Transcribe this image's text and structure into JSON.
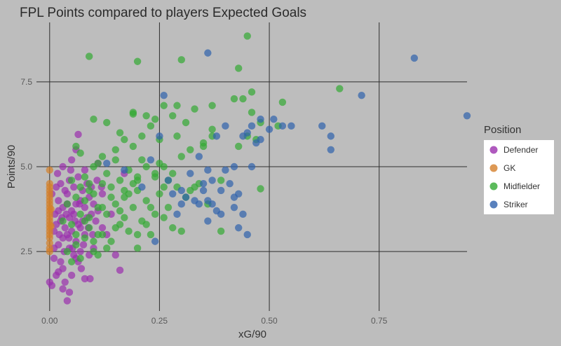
{
  "chart_data": {
    "type": "scatter",
    "title": "FPL Points compared to players Expected Goals",
    "xlabel": "xG/90",
    "ylabel": "Points/90",
    "xlim": [
      -0.03,
      0.95
    ],
    "ylim": [
      0.75,
      9.25
    ],
    "xticks": [
      0.0,
      0.25,
      0.5,
      0.75
    ],
    "xtick_labels": [
      "0.00",
      "0.25",
      "0.50",
      "0.75"
    ],
    "yticks": [
      2.5,
      5.0,
      7.5
    ],
    "ytick_labels": [
      "2.5",
      "5.0",
      "7.5"
    ],
    "grid": true,
    "legend": {
      "title": "Position",
      "placement": "right",
      "entries": [
        {
          "label": "Defender",
          "color": "#9b2fae"
        },
        {
          "label": "GK",
          "color": "#d4802a"
        },
        {
          "label": "Midfielder",
          "color": "#33aa33"
        },
        {
          "label": "Striker",
          "color": "#2f62ad"
        }
      ]
    },
    "series": [
      {
        "name": "Defender",
        "color": "#9b2fae",
        "points": [
          [
            0.0,
            1.6
          ],
          [
            0.005,
            1.5
          ],
          [
            0.01,
            2.3
          ],
          [
            0.015,
            1.8
          ],
          [
            0.02,
            1.9
          ],
          [
            0.025,
            2.2
          ],
          [
            0.03,
            1.4
          ],
          [
            0.035,
            1.6
          ],
          [
            0.04,
            1.05
          ],
          [
            0.045,
            2.6
          ],
          [
            0.05,
            1.8
          ],
          [
            0.055,
            2.4
          ],
          [
            0.06,
            2.3
          ],
          [
            0.065,
            2.2
          ],
          [
            0.07,
            2.5
          ],
          [
            0.08,
            1.7
          ],
          [
            0.09,
            2.4
          ],
          [
            0.1,
            2.6
          ],
          [
            0.02,
            2.7
          ],
          [
            0.03,
            2.9
          ],
          [
            0.04,
            3.0
          ],
          [
            0.05,
            3.1
          ],
          [
            0.06,
            2.8
          ],
          [
            0.07,
            3.2
          ],
          [
            0.08,
            3.0
          ],
          [
            0.01,
            3.1
          ],
          [
            0.015,
            3.3
          ],
          [
            0.025,
            3.4
          ],
          [
            0.035,
            3.2
          ],
          [
            0.045,
            3.5
          ],
          [
            0.055,
            3.6
          ],
          [
            0.065,
            3.3
          ],
          [
            0.075,
            3.4
          ],
          [
            0.085,
            3.5
          ],
          [
            0.095,
            3.6
          ],
          [
            0.105,
            3.4
          ],
          [
            0.02,
            3.7
          ],
          [
            0.03,
            3.8
          ],
          [
            0.04,
            3.9
          ],
          [
            0.05,
            3.7
          ],
          [
            0.06,
            3.9
          ],
          [
            0.07,
            4.0
          ],
          [
            0.08,
            3.8
          ],
          [
            0.09,
            4.1
          ],
          [
            0.1,
            3.9
          ],
          [
            0.11,
            3.7
          ],
          [
            0.005,
            4.2
          ],
          [
            0.015,
            4.4
          ],
          [
            0.025,
            4.5
          ],
          [
            0.035,
            4.3
          ],
          [
            0.045,
            4.6
          ],
          [
            0.055,
            4.4
          ],
          [
            0.065,
            4.7
          ],
          [
            0.075,
            4.3
          ],
          [
            0.085,
            4.5
          ],
          [
            0.095,
            4.4
          ],
          [
            0.12,
            4.2
          ],
          [
            0.03,
            5.0
          ],
          [
            0.05,
            5.2
          ],
          [
            0.06,
            5.5
          ],
          [
            0.08,
            4.9
          ],
          [
            0.11,
            5.1
          ],
          [
            0.12,
            3.2
          ],
          [
            0.13,
            3.0
          ],
          [
            0.15,
            2.4
          ],
          [
            0.16,
            1.95
          ],
          [
            0.065,
            5.95
          ],
          [
            0.02,
            4.0
          ],
          [
            0.04,
            4.2
          ],
          [
            0.03,
            2.0
          ],
          [
            0.045,
            1.3
          ],
          [
            0.01,
            2.6
          ],
          [
            0.012,
            3.6
          ],
          [
            0.022,
            3.0
          ],
          [
            0.033,
            2.5
          ],
          [
            0.044,
            2.9
          ],
          [
            0.058,
            3.4
          ],
          [
            0.068,
            3.9
          ],
          [
            0.077,
            2.7
          ],
          [
            0.088,
            3.2
          ],
          [
            0.098,
            3.0
          ],
          [
            0.018,
            4.8
          ],
          [
            0.048,
            4.9
          ],
          [
            0.028,
            3.5
          ],
          [
            0.038,
            3.6
          ],
          [
            0.052,
            2.6
          ],
          [
            0.072,
            2.0
          ],
          [
            0.092,
            1.7
          ],
          [
            0.108,
            4.6
          ],
          [
            0.118,
            4.4
          ],
          [
            0.17,
            4.8
          ],
          [
            0.14,
            3.6
          ]
        ]
      },
      {
        "name": "GK",
        "color": "#d4802a",
        "points": [
          [
            0.0,
            2.5
          ],
          [
            0.0,
            2.6
          ],
          [
            0.0,
            2.75
          ],
          [
            0.0,
            2.9
          ],
          [
            0.0,
            3.0
          ],
          [
            0.0,
            3.1
          ],
          [
            0.0,
            3.2
          ],
          [
            0.0,
            3.3
          ],
          [
            0.0,
            3.4
          ],
          [
            0.0,
            3.5
          ],
          [
            0.0,
            3.6
          ],
          [
            0.0,
            3.7
          ],
          [
            0.0,
            3.8
          ],
          [
            0.0,
            3.9
          ],
          [
            0.0,
            4.0
          ],
          [
            0.0,
            4.1
          ],
          [
            0.0,
            4.2
          ],
          [
            0.0,
            4.3
          ],
          [
            0.0,
            4.4
          ],
          [
            0.0,
            4.5
          ],
          [
            0.0,
            4.9
          ],
          [
            0.003,
            3.25
          ],
          [
            0.003,
            3.75
          ]
        ]
      },
      {
        "name": "Midfielder",
        "color": "#33aa33",
        "points": [
          [
            0.04,
            2.5
          ],
          [
            0.06,
            2.7
          ],
          [
            0.08,
            2.9
          ],
          [
            0.1,
            2.5
          ],
          [
            0.12,
            3.0
          ],
          [
            0.14,
            2.8
          ],
          [
            0.16,
            3.3
          ],
          [
            0.18,
            3.1
          ],
          [
            0.2,
            2.6
          ],
          [
            0.21,
            3.4
          ],
          [
            0.23,
            3.0
          ],
          [
            0.24,
            3.6
          ],
          [
            0.05,
            3.3
          ],
          [
            0.07,
            3.6
          ],
          [
            0.09,
            3.5
          ],
          [
            0.11,
            3.8
          ],
          [
            0.13,
            3.6
          ],
          [
            0.15,
            3.9
          ],
          [
            0.17,
            4.1
          ],
          [
            0.19,
            3.8
          ],
          [
            0.2,
            4.3
          ],
          [
            0.22,
            4.0
          ],
          [
            0.25,
            4.2
          ],
          [
            0.27,
            3.8
          ],
          [
            0.29,
            4.4
          ],
          [
            0.31,
            4.1
          ],
          [
            0.33,
            4.4
          ],
          [
            0.1,
            4.2
          ],
          [
            0.12,
            4.5
          ],
          [
            0.14,
            4.4
          ],
          [
            0.16,
            4.6
          ],
          [
            0.18,
            4.9
          ],
          [
            0.2,
            4.6
          ],
          [
            0.22,
            5.0
          ],
          [
            0.24,
            4.7
          ],
          [
            0.26,
            5.0
          ],
          [
            0.28,
            4.8
          ],
          [
            0.3,
            5.3
          ],
          [
            0.32,
            5.5
          ],
          [
            0.35,
            5.6
          ],
          [
            0.37,
            5.9
          ],
          [
            0.08,
            4.7
          ],
          [
            0.1,
            5.0
          ],
          [
            0.12,
            5.3
          ],
          [
            0.15,
            5.5
          ],
          [
            0.17,
            5.8
          ],
          [
            0.19,
            5.6
          ],
          [
            0.21,
            5.9
          ],
          [
            0.23,
            6.2
          ],
          [
            0.25,
            5.8
          ],
          [
            0.28,
            6.5
          ],
          [
            0.1,
            6.4
          ],
          [
            0.13,
            6.3
          ],
          [
            0.16,
            6.0
          ],
          [
            0.19,
            6.6
          ],
          [
            0.22,
            6.5
          ],
          [
            0.24,
            6.4
          ],
          [
            0.26,
            6.8
          ],
          [
            0.29,
            6.8
          ],
          [
            0.33,
            6.7
          ],
          [
            0.37,
            6.8
          ],
          [
            0.42,
            7.0
          ],
          [
            0.44,
            7.0
          ],
          [
            0.46,
            7.2
          ],
          [
            0.46,
            6.6
          ],
          [
            0.48,
            6.3
          ],
          [
            0.52,
            6.2
          ],
          [
            0.53,
            6.9
          ],
          [
            0.66,
            7.3
          ],
          [
            0.48,
            4.35
          ],
          [
            0.43,
            5.6
          ],
          [
            0.47,
            5.8
          ],
          [
            0.45,
            5.9
          ],
          [
            0.09,
            8.25
          ],
          [
            0.2,
            8.1
          ],
          [
            0.3,
            8.15
          ],
          [
            0.43,
            7.9
          ],
          [
            0.45,
            8.85
          ],
          [
            0.06,
            5.6
          ],
          [
            0.04,
            3.9
          ],
          [
            0.06,
            4.1
          ],
          [
            0.08,
            4.0
          ],
          [
            0.05,
            2.2
          ],
          [
            0.07,
            2.3
          ],
          [
            0.11,
            2.4
          ],
          [
            0.13,
            2.6
          ],
          [
            0.3,
            3.1
          ],
          [
            0.34,
            4.5
          ],
          [
            0.36,
            3.9
          ],
          [
            0.39,
            3.1
          ],
          [
            0.15,
            3.2
          ],
          [
            0.17,
            3.5
          ],
          [
            0.26,
            3.5
          ],
          [
            0.28,
            3.2
          ],
          [
            0.32,
            4.3
          ],
          [
            0.2,
            3.0
          ],
          [
            0.22,
            3.3
          ],
          [
            0.24,
            4.8
          ],
          [
            0.26,
            4.4
          ],
          [
            0.09,
            3.2
          ],
          [
            0.11,
            3.0
          ],
          [
            0.07,
            4.4
          ],
          [
            0.09,
            4.3
          ],
          [
            0.11,
            5.1
          ],
          [
            0.13,
            4.8
          ],
          [
            0.15,
            5.2
          ],
          [
            0.17,
            4.3
          ],
          [
            0.19,
            4.5
          ],
          [
            0.21,
            5.2
          ],
          [
            0.23,
            3.8
          ],
          [
            0.25,
            5.1
          ],
          [
            0.27,
            4.6
          ],
          [
            0.29,
            5.9
          ],
          [
            0.31,
            6.3
          ],
          [
            0.35,
            5.7
          ],
          [
            0.37,
            6.1
          ],
          [
            0.06,
            3.0
          ],
          [
            0.08,
            3.4
          ],
          [
            0.1,
            2.8
          ],
          [
            0.12,
            3.8
          ],
          [
            0.14,
            4.1
          ],
          [
            0.16,
            3.7
          ],
          [
            0.18,
            4.2
          ],
          [
            0.2,
            4.7
          ],
          [
            0.05,
            4.6
          ],
          [
            0.07,
            5.4
          ],
          [
            0.09,
            4.5
          ],
          [
            0.03,
            3.4
          ],
          [
            0.19,
            6.55
          ],
          [
            0.39,
            4.6
          ]
        ]
      },
      {
        "name": "Striker",
        "color": "#2f62ad",
        "points": [
          [
            0.13,
            5.1
          ],
          [
            0.17,
            4.9
          ],
          [
            0.21,
            4.4
          ],
          [
            0.23,
            5.2
          ],
          [
            0.24,
            2.8
          ],
          [
            0.25,
            5.9
          ],
          [
            0.26,
            7.1
          ],
          [
            0.27,
            4.6
          ],
          [
            0.28,
            4.2
          ],
          [
            0.29,
            3.6
          ],
          [
            0.3,
            4.3
          ],
          [
            0.31,
            4.1
          ],
          [
            0.32,
            4.8
          ],
          [
            0.33,
            4.0
          ],
          [
            0.34,
            3.9
          ],
          [
            0.35,
            4.5
          ],
          [
            0.35,
            4.3
          ],
          [
            0.36,
            4.0
          ],
          [
            0.36,
            4.9
          ],
          [
            0.36,
            3.4
          ],
          [
            0.37,
            4.6
          ],
          [
            0.37,
            3.9
          ],
          [
            0.38,
            3.7
          ],
          [
            0.39,
            3.6
          ],
          [
            0.39,
            4.3
          ],
          [
            0.4,
            4.9
          ],
          [
            0.4,
            6.2
          ],
          [
            0.41,
            4.5
          ],
          [
            0.42,
            3.8
          ],
          [
            0.42,
            5.0
          ],
          [
            0.43,
            3.2
          ],
          [
            0.43,
            4.2
          ],
          [
            0.44,
            3.6
          ],
          [
            0.44,
            5.9
          ],
          [
            0.45,
            3.0
          ],
          [
            0.45,
            6.0
          ],
          [
            0.46,
            5.0
          ],
          [
            0.46,
            6.2
          ],
          [
            0.47,
            5.7
          ],
          [
            0.48,
            6.4
          ],
          [
            0.48,
            5.8
          ],
          [
            0.5,
            6.1
          ],
          [
            0.51,
            6.4
          ],
          [
            0.53,
            6.2
          ],
          [
            0.55,
            6.2
          ],
          [
            0.62,
            6.2
          ],
          [
            0.64,
            5.9
          ],
          [
            0.64,
            5.5
          ],
          [
            0.71,
            7.1
          ],
          [
            0.83,
            8.2
          ],
          [
            0.95,
            6.5
          ],
          [
            0.36,
            8.35
          ],
          [
            0.3,
            3.9
          ],
          [
            0.38,
            5.9
          ],
          [
            0.34,
            5.3
          ],
          [
            0.42,
            4.1
          ]
        ]
      }
    ]
  }
}
